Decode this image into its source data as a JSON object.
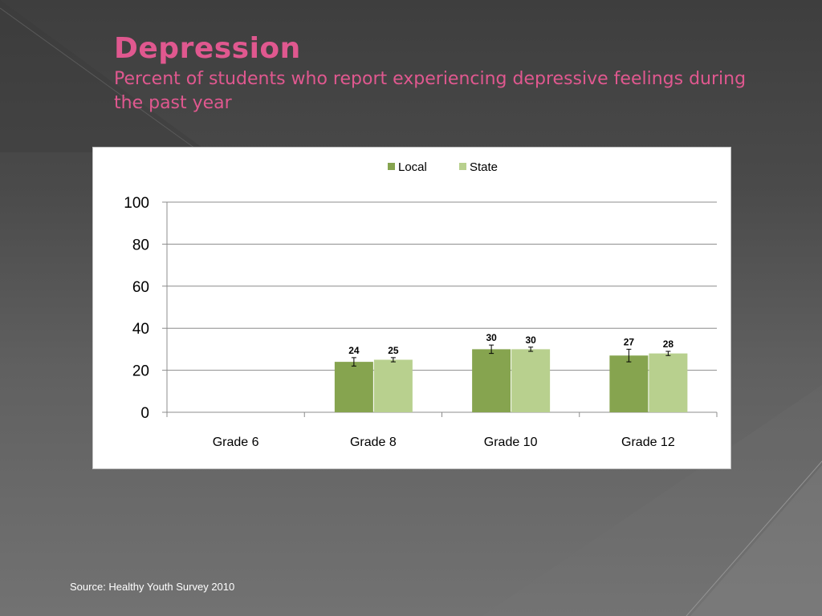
{
  "slide": {
    "title": "Depression",
    "subtitle": "Percent of students who report experiencing depressive feelings during the past year",
    "source": "Source: Healthy Youth Survey 2010"
  },
  "colors": {
    "title": "#e0588f",
    "local": "#86a44f",
    "state": "#b8d08e"
  },
  "chart_data": {
    "type": "bar",
    "categories": [
      "Grade 6",
      "Grade 8",
      "Grade 10",
      "Grade 12"
    ],
    "series": [
      {
        "name": "Local",
        "values": [
          null,
          24,
          30,
          27
        ],
        "labels": [
          "",
          "24",
          "30",
          "27"
        ],
        "error": [
          null,
          2,
          2,
          3
        ]
      },
      {
        "name": "State",
        "values": [
          null,
          25,
          30,
          28
        ],
        "labels": [
          "",
          "25",
          "30",
          "28"
        ],
        "error": [
          null,
          1,
          1,
          1
        ]
      }
    ],
    "ylim": [
      0,
      100
    ],
    "yticks": [
      0,
      20,
      40,
      60,
      80,
      100
    ],
    "grid": true,
    "legend": "top-center"
  }
}
